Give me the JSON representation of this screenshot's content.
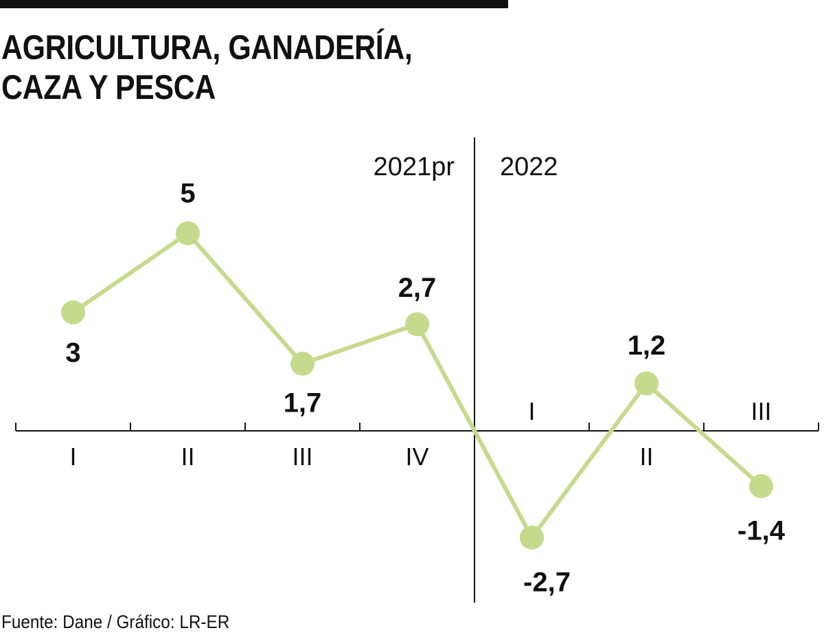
{
  "header": {
    "title": "AGRICULTURA, GANADERÍA,\nCAZA Y PESCA"
  },
  "footer": {
    "source": "Fuente: Dane / Gráfico: LR-ER"
  },
  "colors": {
    "line": "#c5da8c",
    "text": "#111111",
    "axis": "#111111"
  },
  "chart_data": {
    "type": "line",
    "title": "AGRICULTURA, GANADERÍA, CAZA Y PESCA",
    "xlabel": "",
    "ylabel": "",
    "groups": [
      {
        "label": "2021pr",
        "quarters": [
          "I",
          "II",
          "III",
          "IV"
        ]
      },
      {
        "label": "2022",
        "quarters": [
          "I",
          "II",
          "III"
        ]
      }
    ],
    "categories": [
      "2021pr I",
      "2021pr II",
      "2021pr III",
      "2021pr IV",
      "2022 I",
      "2022 II",
      "2022 III"
    ],
    "series": [
      {
        "name": "Agricultura, ganadería, caza y pesca",
        "values": [
          3,
          5,
          1.7,
          2.7,
          -2.7,
          1.2,
          -1.4
        ]
      }
    ],
    "value_labels": [
      "3",
      "5",
      "1,7",
      "2,7",
      "-2,7",
      "1,2",
      "-1,4"
    ],
    "quarter_labels": [
      "I",
      "II",
      "III",
      "IV",
      "I",
      "II",
      "III"
    ],
    "year_labels": [
      "2021pr",
      "2022"
    ],
    "grid": false,
    "legend": "none"
  }
}
